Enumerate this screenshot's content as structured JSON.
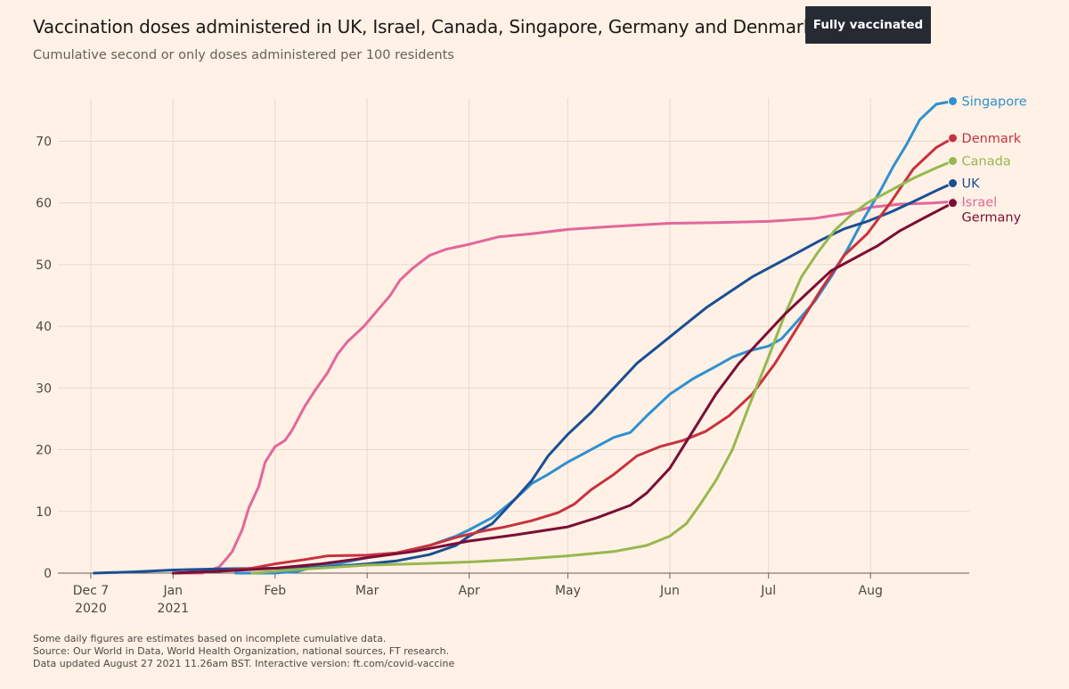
{
  "header": {
    "title": "Vaccination doses administered in UK, Israel, Canada, Singapore, Germany and Denmark",
    "subtitle": "Cumulative second or only doses administered per 100 residents",
    "toggle_label": "Fully vaccinated"
  },
  "footer": {
    "note": "Some daily figures are estimates based on incomplete cumulative data.",
    "source": "Source: Our World in Data, World Health Organization, national sources, FT research.",
    "updated": "Data updated August 27 2021 11.26am BST. Interactive version: ft.com/covid-vaccine"
  },
  "chart_data": {
    "type": "line",
    "title": "Vaccination doses administered in UK, Israel, Canada, Singapore, Germany and Denmark",
    "subtitle": "Cumulative second or only doses administered per 100 residents",
    "x_axis": {
      "type": "date",
      "range": [
        "2020-11-27",
        "2021-08-31"
      ],
      "ticks": [
        {
          "date": "2020-12-07",
          "label": "Dec 7",
          "sublabel": "2020"
        },
        {
          "date": "2021-01-01",
          "label": "Jan",
          "sublabel": "2021"
        },
        {
          "date": "2021-02-01",
          "label": "Feb",
          "sublabel": ""
        },
        {
          "date": "2021-03-01",
          "label": "Mar",
          "sublabel": ""
        },
        {
          "date": "2021-04-01",
          "label": "Apr",
          "sublabel": ""
        },
        {
          "date": "2021-05-01",
          "label": "May",
          "sublabel": ""
        },
        {
          "date": "2021-06-01",
          "label": "Jun",
          "sublabel": ""
        },
        {
          "date": "2021-07-01",
          "label": "Jul",
          "sublabel": ""
        },
        {
          "date": "2021-08-01",
          "label": "Aug",
          "sublabel": ""
        }
      ]
    },
    "y_axis": {
      "range": [
        0,
        77
      ],
      "ticks": [
        0,
        10,
        20,
        30,
        40,
        50,
        60,
        70
      ]
    },
    "grid": true,
    "legend": "direct labels at line ends",
    "series": [
      {
        "name": "Israel",
        "color": "#e2679b",
        "points": [
          [
            "2021-01-01",
            0
          ],
          [
            "2021-01-10",
            0
          ],
          [
            "2021-01-15",
            1
          ],
          [
            "2021-01-17",
            2.2
          ],
          [
            "2021-01-19",
            3.5
          ],
          [
            "2021-01-22",
            7
          ],
          [
            "2021-01-24",
            10.5
          ],
          [
            "2021-01-27",
            14
          ],
          [
            "2021-01-29",
            18
          ],
          [
            "2021-02-01",
            20.5
          ],
          [
            "2021-02-04",
            21.5
          ],
          [
            "2021-02-06",
            23
          ],
          [
            "2021-02-10",
            27
          ],
          [
            "2021-02-13",
            29.5
          ],
          [
            "2021-02-17",
            32.5
          ],
          [
            "2021-02-20",
            35.5
          ],
          [
            "2021-02-23",
            37.5
          ],
          [
            "2021-02-28",
            40
          ],
          [
            "2021-03-04",
            42.5
          ],
          [
            "2021-03-08",
            45
          ],
          [
            "2021-03-11",
            47.5
          ],
          [
            "2021-03-15",
            49.5
          ],
          [
            "2021-03-20",
            51.5
          ],
          [
            "2021-03-25",
            52.5
          ],
          [
            "2021-04-01",
            53.3
          ],
          [
            "2021-04-10",
            54.5
          ],
          [
            "2021-04-20",
            55
          ],
          [
            "2021-05-01",
            55.7
          ],
          [
            "2021-05-15",
            56.2
          ],
          [
            "2021-06-01",
            56.7
          ],
          [
            "2021-06-15",
            56.8
          ],
          [
            "2021-07-01",
            57
          ],
          [
            "2021-07-15",
            57.5
          ],
          [
            "2021-07-25",
            58.3
          ],
          [
            "2021-08-01",
            59.3
          ],
          [
            "2021-08-10",
            59.8
          ],
          [
            "2021-08-20",
            60
          ],
          [
            "2021-08-26",
            60.2
          ]
        ]
      },
      {
        "name": "Singapore",
        "color": "#3090cf",
        "points": [
          [
            "2021-01-20",
            0
          ],
          [
            "2021-02-01",
            0
          ],
          [
            "2021-02-08",
            0.3
          ],
          [
            "2021-02-14",
            1.2
          ],
          [
            "2021-02-20",
            1.5
          ],
          [
            "2021-03-01",
            2.5
          ],
          [
            "2021-03-10",
            3.2
          ],
          [
            "2021-03-20",
            4.5
          ],
          [
            "2021-03-28",
            6
          ],
          [
            "2021-04-01",
            7
          ],
          [
            "2021-04-08",
            9
          ],
          [
            "2021-04-15",
            12
          ],
          [
            "2021-04-20",
            14.5
          ],
          [
            "2021-04-25",
            16
          ],
          [
            "2021-05-01",
            18
          ],
          [
            "2021-05-08",
            20
          ],
          [
            "2021-05-15",
            22
          ],
          [
            "2021-05-20",
            22.8
          ],
          [
            "2021-05-25",
            25.5
          ],
          [
            "2021-06-01",
            29
          ],
          [
            "2021-06-08",
            31.5
          ],
          [
            "2021-06-15",
            33.5
          ],
          [
            "2021-06-20",
            35
          ],
          [
            "2021-06-25",
            36
          ],
          [
            "2021-07-01",
            36.8
          ],
          [
            "2021-07-05",
            38
          ],
          [
            "2021-07-10",
            41
          ],
          [
            "2021-07-15",
            44
          ],
          [
            "2021-07-20",
            48
          ],
          [
            "2021-07-25",
            52.5
          ],
          [
            "2021-07-30",
            57.5
          ],
          [
            "2021-08-04",
            62
          ],
          [
            "2021-08-08",
            66
          ],
          [
            "2021-08-12",
            69.5
          ],
          [
            "2021-08-16",
            73.5
          ],
          [
            "2021-08-19",
            75
          ],
          [
            "2021-08-21",
            76
          ],
          [
            "2021-08-26",
            76.5
          ]
        ]
      },
      {
        "name": "UK",
        "color": "#1a4f94",
        "points": [
          [
            "2020-12-08",
            0
          ],
          [
            "2020-12-20",
            0.2
          ],
          [
            "2021-01-01",
            0.5
          ],
          [
            "2021-01-15",
            0.7
          ],
          [
            "2021-02-01",
            0.8
          ],
          [
            "2021-02-15",
            0.9
          ],
          [
            "2021-03-01",
            1.5
          ],
          [
            "2021-03-10",
            2
          ],
          [
            "2021-03-20",
            3
          ],
          [
            "2021-03-28",
            4.5
          ],
          [
            "2021-04-01",
            6
          ],
          [
            "2021-04-08",
            8
          ],
          [
            "2021-04-15",
            12
          ],
          [
            "2021-04-20",
            15
          ],
          [
            "2021-04-25",
            19
          ],
          [
            "2021-05-01",
            22.5
          ],
          [
            "2021-05-08",
            26
          ],
          [
            "2021-05-15",
            30
          ],
          [
            "2021-05-22",
            34
          ],
          [
            "2021-05-29",
            37
          ],
          [
            "2021-06-05",
            40
          ],
          [
            "2021-06-12",
            43
          ],
          [
            "2021-06-19",
            45.5
          ],
          [
            "2021-06-26",
            48
          ],
          [
            "2021-07-03",
            50
          ],
          [
            "2021-07-10",
            52
          ],
          [
            "2021-07-17",
            54
          ],
          [
            "2021-07-24",
            55.8
          ],
          [
            "2021-07-31",
            57
          ],
          [
            "2021-08-07",
            58.5
          ],
          [
            "2021-08-14",
            60.2
          ],
          [
            "2021-08-21",
            62
          ],
          [
            "2021-08-26",
            63.2
          ]
        ]
      },
      {
        "name": "Denmark",
        "color": "#c8323f",
        "points": [
          [
            "2021-01-01",
            0
          ],
          [
            "2021-01-15",
            0.3
          ],
          [
            "2021-01-25",
            0.8
          ],
          [
            "2021-02-01",
            1.5
          ],
          [
            "2021-02-10",
            2.2
          ],
          [
            "2021-02-17",
            2.8
          ],
          [
            "2021-03-01",
            2.9
          ],
          [
            "2021-03-10",
            3.3
          ],
          [
            "2021-03-20",
            4.5
          ],
          [
            "2021-03-28",
            5.8
          ],
          [
            "2021-04-05",
            6.8
          ],
          [
            "2021-04-12",
            7.5
          ],
          [
            "2021-04-20",
            8.5
          ],
          [
            "2021-04-28",
            9.8
          ],
          [
            "2021-05-03",
            11.2
          ],
          [
            "2021-05-08",
            13.5
          ],
          [
            "2021-05-15",
            16
          ],
          [
            "2021-05-22",
            19
          ],
          [
            "2021-05-29",
            20.5
          ],
          [
            "2021-06-05",
            21.5
          ],
          [
            "2021-06-12",
            23
          ],
          [
            "2021-06-19",
            25.5
          ],
          [
            "2021-06-26",
            29
          ],
          [
            "2021-07-03",
            34
          ],
          [
            "2021-07-10",
            40
          ],
          [
            "2021-07-17",
            46
          ],
          [
            "2021-07-24",
            51.5
          ],
          [
            "2021-07-31",
            55
          ],
          [
            "2021-08-07",
            60
          ],
          [
            "2021-08-14",
            65.5
          ],
          [
            "2021-08-21",
            69
          ],
          [
            "2021-08-26",
            70.5
          ]
        ]
      },
      {
        "name": "Canada",
        "color": "#96b84f",
        "points": [
          [
            "2021-01-25",
            0
          ],
          [
            "2021-02-05",
            0.5
          ],
          [
            "2021-02-20",
            1
          ],
          [
            "2021-03-01",
            1.3
          ],
          [
            "2021-03-15",
            1.5
          ],
          [
            "2021-04-01",
            1.8
          ],
          [
            "2021-04-15",
            2.2
          ],
          [
            "2021-05-01",
            2.8
          ],
          [
            "2021-05-15",
            3.5
          ],
          [
            "2021-05-25",
            4.5
          ],
          [
            "2021-06-01",
            6
          ],
          [
            "2021-06-06",
            8
          ],
          [
            "2021-06-10",
            11
          ],
          [
            "2021-06-15",
            15
          ],
          [
            "2021-06-20",
            20
          ],
          [
            "2021-06-25",
            27
          ],
          [
            "2021-07-01",
            35
          ],
          [
            "2021-07-06",
            42
          ],
          [
            "2021-07-11",
            48
          ],
          [
            "2021-07-16",
            52
          ],
          [
            "2021-07-21",
            55.5
          ],
          [
            "2021-07-26",
            58
          ],
          [
            "2021-07-31",
            60
          ],
          [
            "2021-08-07",
            62
          ],
          [
            "2021-08-14",
            64
          ],
          [
            "2021-08-21",
            65.7
          ],
          [
            "2021-08-26",
            66.8
          ]
        ]
      },
      {
        "name": "Germany",
        "color": "#7b0e36",
        "points": [
          [
            "2021-01-01",
            0
          ],
          [
            "2021-01-15",
            0.3
          ],
          [
            "2021-02-01",
            0.8
          ],
          [
            "2021-02-15",
            1.5
          ],
          [
            "2021-03-01",
            2.5
          ],
          [
            "2021-03-15",
            3.5
          ],
          [
            "2021-04-01",
            5.2
          ],
          [
            "2021-04-15",
            6.2
          ],
          [
            "2021-05-01",
            7.5
          ],
          [
            "2021-05-10",
            9
          ],
          [
            "2021-05-20",
            11
          ],
          [
            "2021-05-25",
            13
          ],
          [
            "2021-06-01",
            17
          ],
          [
            "2021-06-08",
            23
          ],
          [
            "2021-06-15",
            29
          ],
          [
            "2021-06-22",
            34
          ],
          [
            "2021-06-29",
            38
          ],
          [
            "2021-07-06",
            42
          ],
          [
            "2021-07-13",
            45.5
          ],
          [
            "2021-07-20",
            49
          ],
          [
            "2021-07-27",
            51
          ],
          [
            "2021-08-03",
            53
          ],
          [
            "2021-08-10",
            55.5
          ],
          [
            "2021-08-17",
            57.5
          ],
          [
            "2021-08-26",
            60
          ]
        ]
      }
    ]
  }
}
